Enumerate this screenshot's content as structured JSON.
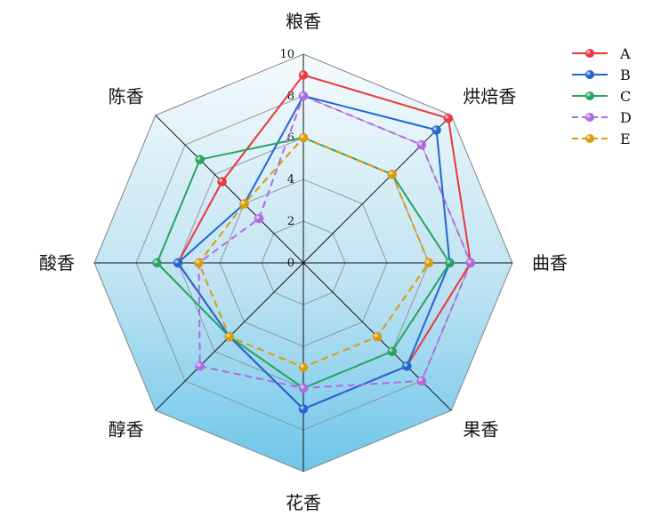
{
  "chart_data": {
    "type": "radar",
    "axes": [
      "粮香",
      "烘焙香",
      "曲香",
      "果香",
      "花香",
      "醇香",
      "酸香",
      "陈香"
    ],
    "rmin": 0,
    "rmax": 10,
    "ticks": [
      "0",
      "2",
      "4",
      "6",
      "8",
      "10"
    ],
    "tick_values": [
      0,
      2,
      4,
      6,
      8,
      10
    ],
    "legend_position": "top-right",
    "series": [
      {
        "name": "A",
        "values": [
          9,
          9.8,
          8,
          7,
          7,
          5,
          6,
          5.5
        ],
        "color": "#e8383d",
        "dash": false
      },
      {
        "name": "B",
        "values": [
          8,
          9,
          7,
          7,
          7,
          5,
          6,
          4
        ],
        "color": "#1f66d6",
        "dash": false
      },
      {
        "name": "C",
        "values": [
          6,
          6,
          7,
          6,
          6,
          5,
          7,
          7
        ],
        "color": "#27a360",
        "dash": false
      },
      {
        "name": "D",
        "values": [
          8,
          8,
          8,
          8,
          6,
          7,
          5,
          3
        ],
        "color": "#b06be0",
        "dash": true
      },
      {
        "name": "E",
        "values": [
          6,
          6,
          6,
          5,
          5,
          5,
          5,
          4
        ],
        "color": "#d99c0c",
        "dash": true
      }
    ]
  }
}
